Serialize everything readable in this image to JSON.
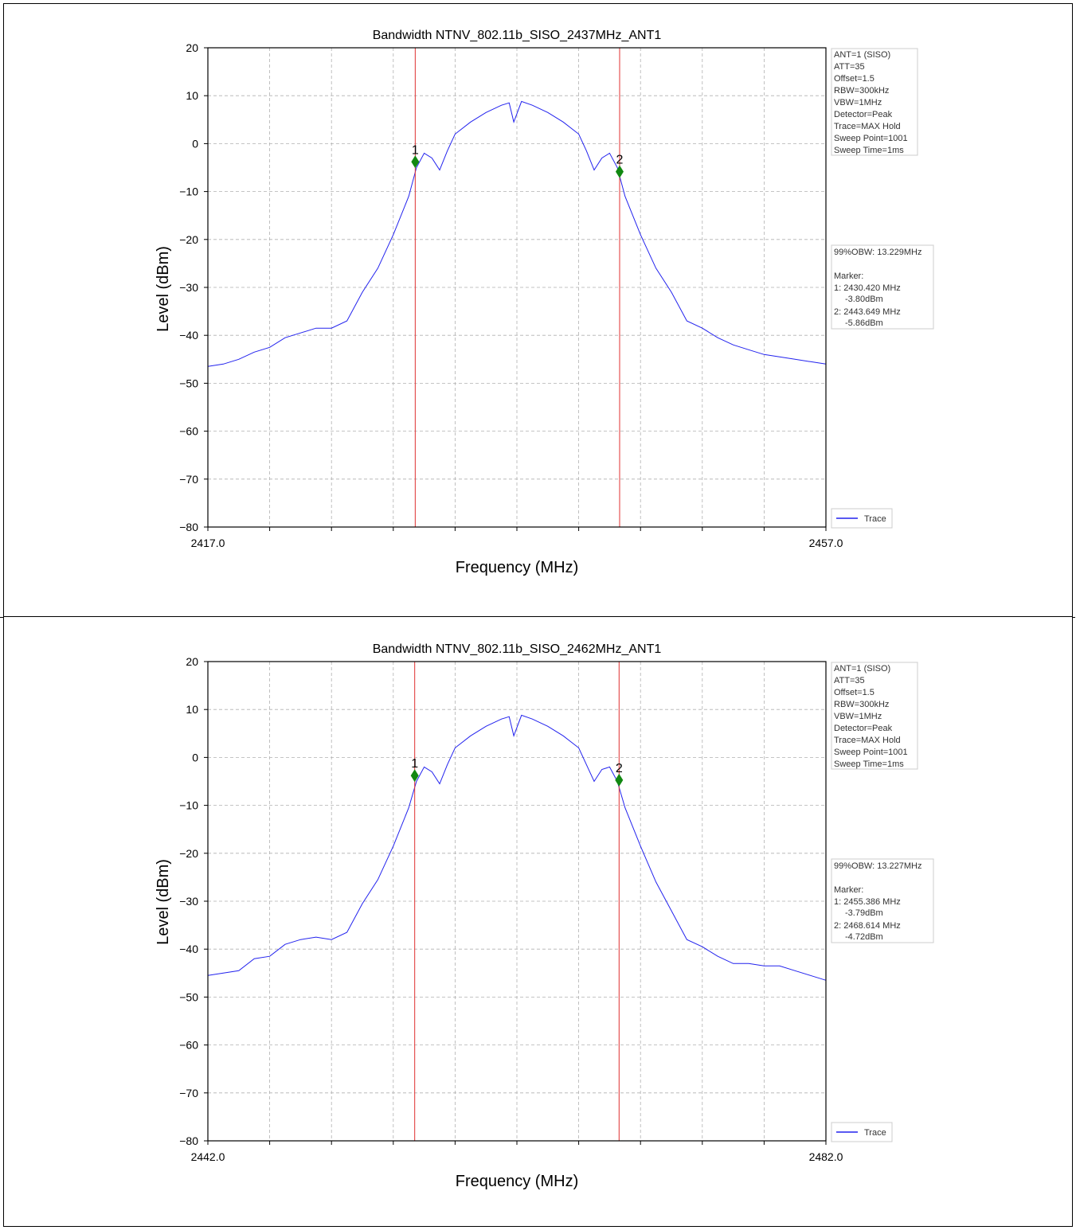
{
  "charts_common": {
    "xlabel": "Frequency (MHz)",
    "ylabel": "Level (dBm)",
    "legend_label": "Trace",
    "settings": [
      "ANT=1 (SISO)",
      "ATT=35",
      "Offset=1.5",
      "RBW=300kHz",
      "VBW=1MHz",
      "Detector=Peak",
      "Trace=MAX Hold",
      "Sweep Point=1001",
      "Sweep Time=1ms"
    ],
    "marker_heading": "Marker:",
    "colors": {
      "trace": "#2222ee",
      "marker_line": "#e03030",
      "marker_point": "#118811",
      "grid": "#b0b0b0"
    }
  },
  "chart_data": [
    {
      "type": "line",
      "title": "Bandwidth NTNV_802.11b_SISO_2437MHz_ANT1",
      "xlabel": "Frequency (MHz)",
      "ylabel": "Level (dBm)",
      "xlim": [
        2417.0,
        2457.0
      ],
      "ylim": [
        -80,
        20
      ],
      "x_tick_labels": [
        "2417.0",
        "2457.0"
      ],
      "y_ticks": [
        20,
        10,
        0,
        -10,
        -20,
        -30,
        -40,
        -50,
        -60,
        -70,
        -80
      ],
      "y_tick_labels": [
        "20",
        "10",
        "0",
        "−10",
        "−20",
        "−30",
        "−40",
        "−50",
        "−60",
        "−70",
        "−80"
      ],
      "grid": true,
      "legend": "bottom-right",
      "obw_text": "99%OBW: 13.229MHz",
      "markers": [
        {
          "label": "1",
          "freq_mhz": 2430.42,
          "level_dbm": -3.8,
          "line1": "1: 2430.420 MHz",
          "line2": "-3.80dBm"
        },
        {
          "label": "2",
          "freq_mhz": 2443.649,
          "level_dbm": -5.86,
          "line1": "2: 2443.649 MHz",
          "line2": "-5.86dBm"
        }
      ],
      "series": [
        {
          "name": "Trace",
          "points": [
            [
              2417.0,
              -46.5
            ],
            [
              2418.0,
              -46.0
            ],
            [
              2419.0,
              -45.0
            ],
            [
              2420.0,
              -43.5
            ],
            [
              2421.0,
              -42.5
            ],
            [
              2422.0,
              -40.5
            ],
            [
              2423.0,
              -39.5
            ],
            [
              2424.0,
              -38.5
            ],
            [
              2425.0,
              -38.5
            ],
            [
              2426.0,
              -37.0
            ],
            [
              2427.0,
              -31.0
            ],
            [
              2428.0,
              -26.0
            ],
            [
              2429.0,
              -19.0
            ],
            [
              2430.0,
              -11.0
            ],
            [
              2430.5,
              -5.0
            ],
            [
              2431.0,
              -2.0
            ],
            [
              2431.5,
              -3.0
            ],
            [
              2432.0,
              -5.5
            ],
            [
              2432.5,
              -1.5
            ],
            [
              2433.0,
              2.0
            ],
            [
              2434.0,
              4.5
            ],
            [
              2435.0,
              6.5
            ],
            [
              2436.0,
              8.0
            ],
            [
              2436.5,
              8.5
            ],
            [
              2436.8,
              4.5
            ],
            [
              2437.3,
              8.8
            ],
            [
              2438.0,
              8.0
            ],
            [
              2439.0,
              6.5
            ],
            [
              2440.0,
              4.5
            ],
            [
              2441.0,
              2.0
            ],
            [
              2441.5,
              -1.5
            ],
            [
              2442.0,
              -5.5
            ],
            [
              2442.5,
              -3.0
            ],
            [
              2443.0,
              -2.0
            ],
            [
              2443.5,
              -5.0
            ],
            [
              2444.0,
              -11.0
            ],
            [
              2445.0,
              -19.0
            ],
            [
              2446.0,
              -26.0
            ],
            [
              2447.0,
              -31.0
            ],
            [
              2448.0,
              -37.0
            ],
            [
              2449.0,
              -38.5
            ],
            [
              2450.0,
              -40.5
            ],
            [
              2451.0,
              -42.0
            ],
            [
              2452.0,
              -43.0
            ],
            [
              2453.0,
              -44.0
            ],
            [
              2454.0,
              -44.5
            ],
            [
              2455.0,
              -45.0
            ],
            [
              2456.0,
              -45.5
            ],
            [
              2457.0,
              -46.0
            ]
          ]
        }
      ]
    },
    {
      "type": "line",
      "title": "Bandwidth NTNV_802.11b_SISO_2462MHz_ANT1",
      "xlabel": "Frequency (MHz)",
      "ylabel": "Level (dBm)",
      "xlim": [
        2442.0,
        2482.0
      ],
      "ylim": [
        -80,
        20
      ],
      "x_tick_labels": [
        "2442.0",
        "2482.0"
      ],
      "y_ticks": [
        20,
        10,
        0,
        -10,
        -20,
        -30,
        -40,
        -50,
        -60,
        -70,
        -80
      ],
      "y_tick_labels": [
        "20",
        "10",
        "0",
        "−10",
        "−20",
        "−30",
        "−40",
        "−50",
        "−60",
        "−70",
        "−80"
      ],
      "grid": true,
      "legend": "bottom-right",
      "obw_text": "99%OBW: 13.227MHz",
      "markers": [
        {
          "label": "1",
          "freq_mhz": 2455.386,
          "level_dbm": -3.79,
          "line1": "1: 2455.386 MHz",
          "line2": "-3.79dBm"
        },
        {
          "label": "2",
          "freq_mhz": 2468.614,
          "level_dbm": -4.72,
          "line1": "2: 2468.614 MHz",
          "line2": "-4.72dBm"
        }
      ],
      "series": [
        {
          "name": "Trace",
          "points": [
            [
              2442.0,
              -45.5
            ],
            [
              2443.0,
              -45.0
            ],
            [
              2444.0,
              -44.5
            ],
            [
              2445.0,
              -42.0
            ],
            [
              2446.0,
              -41.5
            ],
            [
              2447.0,
              -39.0
            ],
            [
              2448.0,
              -38.0
            ],
            [
              2449.0,
              -37.5
            ],
            [
              2450.0,
              -38.0
            ],
            [
              2451.0,
              -36.5
            ],
            [
              2452.0,
              -30.5
            ],
            [
              2453.0,
              -25.5
            ],
            [
              2454.0,
              -18.5
            ],
            [
              2455.0,
              -10.5
            ],
            [
              2455.5,
              -5.0
            ],
            [
              2456.0,
              -2.0
            ],
            [
              2456.5,
              -3.0
            ],
            [
              2457.0,
              -5.5
            ],
            [
              2457.5,
              -1.5
            ],
            [
              2458.0,
              2.0
            ],
            [
              2459.0,
              4.5
            ],
            [
              2460.0,
              6.5
            ],
            [
              2461.0,
              8.0
            ],
            [
              2461.5,
              8.5
            ],
            [
              2461.8,
              4.5
            ],
            [
              2462.3,
              8.8
            ],
            [
              2463.0,
              8.0
            ],
            [
              2464.0,
              6.5
            ],
            [
              2465.0,
              4.5
            ],
            [
              2466.0,
              2.0
            ],
            [
              2466.5,
              -1.5
            ],
            [
              2467.0,
              -5.0
            ],
            [
              2467.5,
              -2.5
            ],
            [
              2468.0,
              -2.0
            ],
            [
              2468.5,
              -5.0
            ],
            [
              2469.0,
              -10.5
            ],
            [
              2470.0,
              -18.5
            ],
            [
              2471.0,
              -26.0
            ],
            [
              2472.0,
              -32.0
            ],
            [
              2473.0,
              -38.0
            ],
            [
              2474.0,
              -39.5
            ],
            [
              2475.0,
              -41.5
            ],
            [
              2476.0,
              -43.0
            ],
            [
              2477.0,
              -43.0
            ],
            [
              2478.0,
              -43.5
            ],
            [
              2479.0,
              -43.5
            ],
            [
              2480.0,
              -44.5
            ],
            [
              2481.0,
              -45.5
            ],
            [
              2482.0,
              -46.5
            ]
          ]
        }
      ]
    }
  ]
}
